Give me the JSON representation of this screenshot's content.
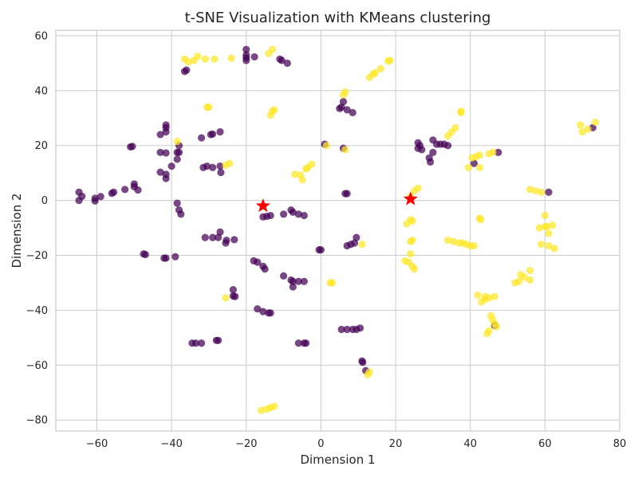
{
  "chart_data": {
    "type": "scatter",
    "title": "t-SNE Visualization with KMeans clustering",
    "xlabel": "Dimension 1",
    "ylabel": "Dimension 2",
    "xlim": [
      -71,
      80
    ],
    "ylim": [
      -84,
      62
    ],
    "xticks": [
      -60,
      -40,
      -20,
      0,
      20,
      40,
      60,
      80
    ],
    "yticks": [
      -80,
      -60,
      -40,
      -20,
      0,
      20,
      40,
      60
    ],
    "grid": true,
    "colors": {
      "cluster_0": "#440154",
      "cluster_1": "#fde725",
      "centroid": "#ff0000"
    },
    "series": [
      {
        "cluster": 0,
        "points": [
          [
            -64.8,
            3
          ],
          [
            -64,
            1.5
          ],
          [
            -64.8,
            0
          ],
          [
            -60.5,
            0.8
          ],
          [
            -60.5,
            -0.2
          ],
          [
            -59,
            1.4
          ],
          [
            -56,
            2.6
          ],
          [
            -55.5,
            3
          ],
          [
            -52.5,
            4
          ],
          [
            -50,
            6
          ],
          [
            -50,
            5
          ],
          [
            -49,
            3.8
          ],
          [
            -51,
            19.5
          ],
          [
            -50.5,
            19.7
          ],
          [
            -43,
            24
          ],
          [
            -41.5,
            27.5
          ],
          [
            -41.5,
            26.5
          ],
          [
            -41.5,
            25
          ],
          [
            -43,
            17.5
          ],
          [
            -41.5,
            17.3
          ],
          [
            -38,
            20
          ],
          [
            -38.5,
            17.5
          ],
          [
            -38,
            17.5
          ],
          [
            -38.5,
            15
          ],
          [
            -40,
            12.5
          ],
          [
            -43,
            10.3
          ],
          [
            -41.5,
            9.5
          ],
          [
            -41.5,
            8
          ],
          [
            -38.5,
            -1
          ],
          [
            -38,
            -3.5
          ],
          [
            -37.5,
            -5
          ],
          [
            -32,
            22.8
          ],
          [
            -29.5,
            24
          ],
          [
            -29,
            24.2
          ],
          [
            -27,
            25
          ],
          [
            -31.5,
            12
          ],
          [
            -30.5,
            12.5
          ],
          [
            -29,
            12
          ],
          [
            -27,
            12.5
          ],
          [
            -26.8,
            10.2
          ],
          [
            -47.5,
            -19.5
          ],
          [
            -47,
            -19.7
          ],
          [
            -42,
            -21
          ],
          [
            -41.5,
            -21
          ],
          [
            -39,
            -20.5
          ],
          [
            -31,
            -13.5
          ],
          [
            -29,
            -13.5
          ],
          [
            -27.5,
            -13.5
          ],
          [
            -27,
            -11.5
          ],
          [
            -25.5,
            -15.5
          ],
          [
            -25.3,
            -14.5
          ],
          [
            -23.2,
            -14.3
          ],
          [
            -23.5,
            -32.5
          ],
          [
            -23.5,
            -34.8
          ],
          [
            -23,
            -35
          ],
          [
            -34.5,
            -52
          ],
          [
            -33.5,
            -52
          ],
          [
            -32,
            -52
          ],
          [
            -28,
            -51
          ],
          [
            -27.5,
            -51
          ],
          [
            -20,
            55
          ],
          [
            -20,
            53
          ],
          [
            -20,
            52
          ],
          [
            -20,
            51
          ],
          [
            -17.8,
            52.3
          ],
          [
            -11,
            51.5
          ],
          [
            -10.5,
            51
          ],
          [
            -9,
            50
          ],
          [
            -36.5,
            47
          ],
          [
            -36,
            47.5
          ],
          [
            -18,
            -22
          ],
          [
            -17,
            -22.5
          ],
          [
            -15.5,
            -24
          ],
          [
            -15,
            -25
          ],
          [
            -15.5,
            -6
          ],
          [
            -14.5,
            -5.8
          ],
          [
            -13.5,
            -5.5
          ],
          [
            -10,
            -5
          ],
          [
            -8,
            -3.5
          ],
          [
            -7.5,
            -4.3
          ],
          [
            -6,
            -5
          ],
          [
            -4.5,
            -5.5
          ],
          [
            -10,
            -27.5
          ],
          [
            -8,
            -29
          ],
          [
            -7.5,
            -29.5
          ],
          [
            -7.5,
            -31.5
          ],
          [
            -6,
            -29.5
          ],
          [
            -4.5,
            -29.5
          ],
          [
            -17,
            -39.5
          ],
          [
            -15.5,
            -40.5
          ],
          [
            -14,
            -41
          ],
          [
            -13.5,
            -41
          ],
          [
            -6,
            -52
          ],
          [
            -4.5,
            -52
          ],
          [
            -4,
            -52
          ],
          [
            -0.5,
            -18
          ],
          [
            0,
            -18
          ],
          [
            5,
            33.5
          ],
          [
            5.5,
            34
          ],
          [
            6,
            36
          ],
          [
            7,
            33
          ],
          [
            8.5,
            32
          ],
          [
            1,
            20.5
          ],
          [
            6,
            19
          ],
          [
            6.5,
            2.5
          ],
          [
            7,
            2.5
          ],
          [
            7,
            -16.5
          ],
          [
            8,
            -16
          ],
          [
            9,
            -15.5
          ],
          [
            9.5,
            -13.5
          ],
          [
            5.5,
            -47
          ],
          [
            7,
            -47
          ],
          [
            8.5,
            -47
          ],
          [
            9.5,
            -47
          ],
          [
            10.5,
            -46.5
          ],
          [
            11,
            -58.5
          ],
          [
            11.2,
            -59
          ],
          [
            12,
            -62
          ],
          [
            26,
            21
          ],
          [
            26.5,
            20
          ],
          [
            26,
            19
          ],
          [
            27,
            18.5
          ],
          [
            29,
            15.5
          ],
          [
            29.3,
            14
          ],
          [
            30,
            17.5
          ],
          [
            30,
            22
          ],
          [
            31,
            20.5
          ],
          [
            32,
            20.5
          ],
          [
            33,
            20.5
          ],
          [
            34,
            20
          ],
          [
            41,
            13.5
          ],
          [
            47.5,
            17.5
          ],
          [
            61,
            3
          ],
          [
            72.8,
            26.5
          ],
          [
            46.5,
            -45.5
          ]
        ]
      },
      {
        "cluster": 1,
        "points": [
          [
            -36.5,
            51.5
          ],
          [
            -35.5,
            50.5
          ],
          [
            -34,
            51
          ],
          [
            -33,
            52.5
          ],
          [
            -31,
            51.5
          ],
          [
            -28.5,
            51.5
          ],
          [
            -24,
            51.8
          ],
          [
            -14,
            53.5
          ],
          [
            -13,
            55
          ],
          [
            18,
            50.8
          ],
          [
            18.5,
            51
          ],
          [
            -30.5,
            34
          ],
          [
            -30,
            34
          ],
          [
            -13.5,
            31
          ],
          [
            -13,
            32.5
          ],
          [
            -12.5,
            33
          ],
          [
            13,
            44.8
          ],
          [
            14,
            46
          ],
          [
            14.5,
            46.5
          ],
          [
            16,
            48
          ],
          [
            -38.5,
            21.5
          ],
          [
            -25.5,
            12.8
          ],
          [
            -24.5,
            13.5
          ],
          [
            -7,
            9.5
          ],
          [
            -5.5,
            9.3
          ],
          [
            -5,
            7.5
          ],
          [
            -4,
            11.5
          ],
          [
            -3.5,
            12
          ],
          [
            -2.5,
            13.2
          ],
          [
            1.5,
            20
          ],
          [
            6.5,
            18.5
          ],
          [
            6,
            38.5
          ],
          [
            6.5,
            39.5
          ],
          [
            23,
            -8.5
          ],
          [
            24,
            -7
          ],
          [
            24.5,
            -7.5
          ],
          [
            24,
            1.5
          ],
          [
            25,
            3.5
          ],
          [
            26,
            4.5
          ],
          [
            22.5,
            -22
          ],
          [
            23.5,
            -22.5
          ],
          [
            24,
            -19.5
          ],
          [
            24.5,
            -24
          ],
          [
            25,
            -25
          ],
          [
            24.5,
            -14.5
          ],
          [
            24,
            -15
          ],
          [
            -25.5,
            -35.5
          ],
          [
            -16,
            -76.5
          ],
          [
            -14.5,
            -76
          ],
          [
            -13.5,
            -75.5
          ],
          [
            -12.5,
            -75
          ],
          [
            2.5,
            -30
          ],
          [
            3,
            -30
          ],
          [
            11,
            -16
          ],
          [
            12.5,
            -63.5
          ],
          [
            13,
            -62.5
          ],
          [
            34,
            -14.5
          ],
          [
            35.5,
            -15
          ],
          [
            37,
            -15.5
          ],
          [
            38,
            -15.5
          ],
          [
            39,
            -16
          ],
          [
            40,
            -16.5
          ],
          [
            41,
            -16.5
          ],
          [
            34,
            23.5
          ],
          [
            35,
            25
          ],
          [
            36,
            26.5
          ],
          [
            37.5,
            32
          ],
          [
            37.5,
            32.5
          ],
          [
            39.5,
            12
          ],
          [
            40.5,
            15.5
          ],
          [
            41.5,
            16
          ],
          [
            42.5,
            12
          ],
          [
            42.5,
            16.5
          ],
          [
            45,
            17
          ],
          [
            46,
            17.5
          ],
          [
            42.5,
            -6.5
          ],
          [
            42.8,
            -7
          ],
          [
            42,
            -34.5
          ],
          [
            43,
            -37
          ],
          [
            44,
            -35
          ],
          [
            44,
            -36
          ],
          [
            45,
            -35.5
          ],
          [
            46.5,
            -35
          ],
          [
            44.5,
            -48.5
          ],
          [
            45,
            -47.5
          ],
          [
            45.5,
            -42
          ],
          [
            46,
            -43.5
          ],
          [
            46.5,
            -45
          ],
          [
            47,
            -46
          ],
          [
            52,
            -30
          ],
          [
            53,
            -29.5
          ],
          [
            53.5,
            -27
          ],
          [
            54.5,
            -28
          ],
          [
            56,
            -25.5
          ],
          [
            56,
            -29
          ],
          [
            56,
            4
          ],
          [
            57.5,
            3.5
          ],
          [
            59,
            3
          ],
          [
            60,
            -5.5
          ],
          [
            58.5,
            -10
          ],
          [
            59,
            -16
          ],
          [
            60,
            -9.5
          ],
          [
            60.5,
            -9.5
          ],
          [
            61,
            -12
          ],
          [
            61,
            -16.5
          ],
          [
            62,
            -9
          ],
          [
            62.5,
            -17.5
          ],
          [
            69.5,
            27.5
          ],
          [
            70,
            25
          ],
          [
            71.5,
            26
          ],
          [
            73.5,
            28.5
          ]
        ]
      }
    ],
    "centroids": [
      [
        -15.5,
        -2
      ],
      [
        24,
        0.5
      ]
    ]
  }
}
